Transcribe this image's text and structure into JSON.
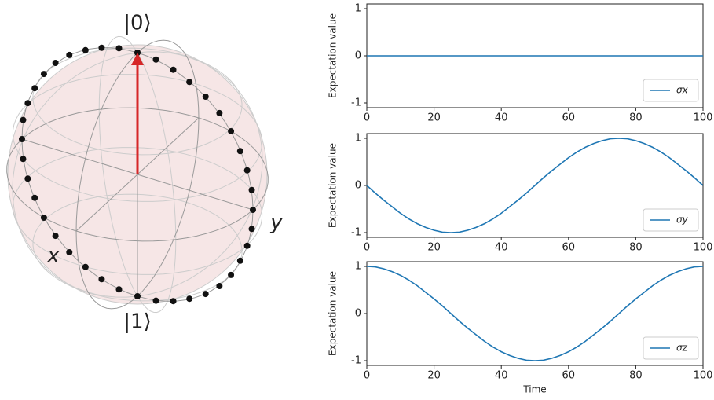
{
  "chart_data": [
    {
      "type": "bloch",
      "labels": [
        "|0⟩",
        "|1⟩",
        "x",
        "y"
      ],
      "vector": [
        0,
        0,
        1
      ],
      "vector_color": "#d62728",
      "point_color": "#111111"
    },
    {
      "type": "line",
      "ylabel": "Expectation value",
      "legend": "lower right",
      "x": [
        0,
        2.5,
        5,
        7.5,
        10,
        12.5,
        15,
        17.5,
        20,
        22.5,
        25,
        27.5,
        30,
        32.5,
        35,
        37.5,
        40,
        42.5,
        45,
        47.5,
        50,
        52.5,
        55,
        57.5,
        60,
        62.5,
        65,
        67.5,
        70,
        72.5,
        75,
        77.5,
        80,
        82.5,
        85,
        87.5,
        90,
        92.5,
        95,
        97.5,
        100
      ],
      "series": [
        {
          "name": "σx",
          "color": "#1f77b4",
          "values": [
            0,
            0,
            0,
            0,
            0,
            0,
            0,
            0,
            0,
            0,
            0,
            0,
            0,
            0,
            0,
            0,
            0,
            0,
            0,
            0,
            0,
            0,
            0,
            0,
            0,
            0,
            0,
            0,
            0,
            0,
            0,
            0,
            0,
            0,
            0,
            0,
            0,
            0,
            0,
            0,
            0
          ]
        }
      ],
      "xlim": [
        0,
        100
      ],
      "xticks": [
        0,
        20,
        40,
        60,
        80,
        100
      ],
      "ylim": [
        -1.1,
        1.1
      ],
      "yticks": [
        -1,
        0,
        1
      ]
    },
    {
      "type": "line",
      "ylabel": "Expectation value",
      "legend": "lower right",
      "x": [
        0,
        2.5,
        5,
        7.5,
        10,
        12.5,
        15,
        17.5,
        20,
        22.5,
        25,
        27.5,
        30,
        32.5,
        35,
        37.5,
        40,
        42.5,
        45,
        47.5,
        50,
        52.5,
        55,
        57.5,
        60,
        62.5,
        65,
        67.5,
        70,
        72.5,
        75,
        77.5,
        80,
        82.5,
        85,
        87.5,
        90,
        92.5,
        95,
        97.5,
        100
      ],
      "series": [
        {
          "name": "σy",
          "color": "#1f77b4",
          "values": [
            0,
            -0.16,
            -0.31,
            -0.45,
            -0.59,
            -0.71,
            -0.81,
            -0.89,
            -0.95,
            -0.99,
            -1,
            -0.99,
            -0.95,
            -0.89,
            -0.81,
            -0.71,
            -0.59,
            -0.45,
            -0.31,
            -0.16,
            0,
            0.16,
            0.31,
            0.45,
            0.59,
            0.71,
            0.81,
            0.89,
            0.95,
            0.99,
            1,
            0.99,
            0.95,
            0.89,
            0.81,
            0.71,
            0.59,
            0.45,
            0.31,
            0.16,
            0
          ]
        }
      ],
      "xlim": [
        0,
        100
      ],
      "xticks": [
        0,
        20,
        40,
        60,
        80,
        100
      ],
      "ylim": [
        -1.1,
        1.1
      ],
      "yticks": [
        -1,
        0,
        1
      ]
    },
    {
      "type": "line",
      "ylabel": "Expectation value",
      "xlabel": "Time",
      "legend": "lower right",
      "x": [
        0,
        2.5,
        5,
        7.5,
        10,
        12.5,
        15,
        17.5,
        20,
        22.5,
        25,
        27.5,
        30,
        32.5,
        35,
        37.5,
        40,
        42.5,
        45,
        47.5,
        50,
        52.5,
        55,
        57.5,
        60,
        62.5,
        65,
        67.5,
        70,
        72.5,
        75,
        77.5,
        80,
        82.5,
        85,
        87.5,
        90,
        92.5,
        95,
        97.5,
        100
      ],
      "series": [
        {
          "name": "σz",
          "color": "#1f77b4",
          "values": [
            1,
            0.99,
            0.95,
            0.89,
            0.81,
            0.71,
            0.59,
            0.45,
            0.31,
            0.16,
            0,
            -0.16,
            -0.31,
            -0.45,
            -0.59,
            -0.71,
            -0.81,
            -0.89,
            -0.95,
            -0.99,
            -1,
            -0.99,
            -0.95,
            -0.89,
            -0.81,
            -0.71,
            -0.59,
            -0.45,
            -0.31,
            -0.16,
            0,
            0.16,
            0.31,
            0.45,
            0.59,
            0.71,
            0.81,
            0.89,
            0.95,
            0.99,
            1
          ]
        }
      ],
      "xlim": [
        0,
        100
      ],
      "xticks": [
        0,
        20,
        40,
        60,
        80,
        100
      ],
      "ylim": [
        -1.1,
        1.1
      ],
      "yticks": [
        -1,
        0,
        1
      ]
    }
  ]
}
